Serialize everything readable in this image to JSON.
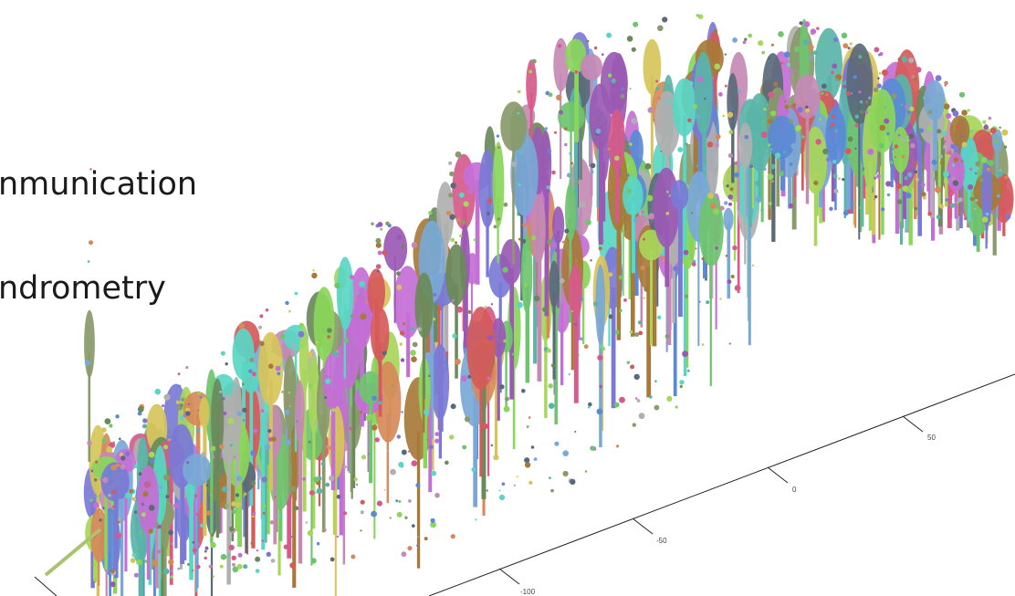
{
  "text_fragments": [
    "nmunication",
    "ndrometry"
  ],
  "axis": {
    "tick_labels": [
      "-100",
      "-50",
      "0",
      "50"
    ]
  },
  "point_cloud": {
    "palette": [
      "#c46fd6",
      "#6fc46f",
      "#7a7ad6",
      "#d68a5a",
      "#5ab4a8",
      "#a87a3a",
      "#d65a8a",
      "#8ad65a",
      "#5a8ad6",
      "#b0b0b0",
      "#6a8a5a",
      "#d6c45a",
      "#9a5ab4",
      "#5ad6c4",
      "#d65a5a",
      "#7aa8d6",
      "#a8d65a",
      "#c48ab4",
      "#5a6a7a",
      "#8a9a6a"
    ]
  }
}
